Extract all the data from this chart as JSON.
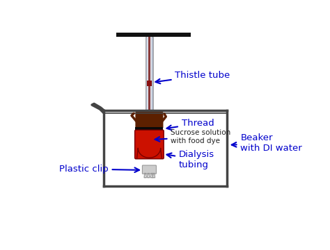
{
  "bg_color": "#ffffff",
  "label_color": "#0000cc",
  "labels": {
    "thistle_tube": "Thistle tube",
    "thread": "Thread",
    "sucrose": "Sucrose solution\nwith food dye",
    "dialysis": "Dialysis\ntubing",
    "plastic_clip": "Plastic clip",
    "beaker": "Beaker\nwith DI water"
  },
  "support_bar_color": "#111111",
  "tube_outer_color": "#b0b8c8",
  "tube_mid_color": "#e8eaf0",
  "tube_center_color": "#8B3a3a",
  "tube_edge_color": "#888888",
  "red_band_color": "#8B1010",
  "beaker_color": "#444444",
  "bulb_fill_color": "#cc1100",
  "bulb_edge_color": "#7a0000",
  "bulb_bottom_color": "#a04020",
  "thread_band_color": "#0a0a0a",
  "top_junction_color": "#5c2000",
  "clip_color": "#cccccc",
  "clip_edge_color": "#999999"
}
